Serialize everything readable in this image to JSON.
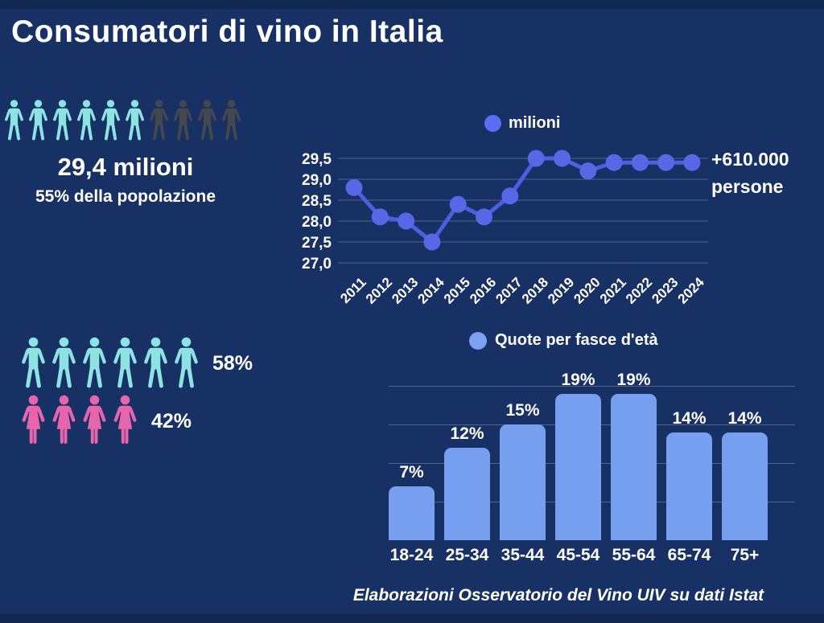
{
  "title": "Consumatori di vino in Italia",
  "colors": {
    "background": "#183165",
    "edge_strip": "#12284f",
    "text": "#ffffff",
    "teal": "#8de2e2",
    "inactive_gray": "#43474e",
    "pink": "#e765ad",
    "line": "#4c5fe0",
    "line_point": "#5767e6",
    "line_legend_dot": "#5b6df2",
    "bar": "#76a0ef",
    "bar_legend_dot": "#7aa2ee",
    "grid": "rgba(255,255,255,0.25)"
  },
  "population": {
    "value_label": "29,4 milioni",
    "share_label": "55% della popolazione",
    "icons_total": 10,
    "icons_highlighted": 6
  },
  "gender": [
    {
      "type": "male",
      "count": 6,
      "label": "58%"
    },
    {
      "type": "female",
      "count": 4,
      "label": "42%"
    }
  ],
  "chart_data": [
    {
      "type": "line",
      "legend": "milioni",
      "x": [
        "2011",
        "2012",
        "2013",
        "2014",
        "2015",
        "2016",
        "2017",
        "2018",
        "2019",
        "2020",
        "2021",
        "2022",
        "2023",
        "2024"
      ],
      "values": [
        28.8,
        28.1,
        28.0,
        27.5,
        28.4,
        28.1,
        28.6,
        29.5,
        29.5,
        29.2,
        29.4,
        29.4,
        29.4,
        29.4
      ],
      "ylim": [
        27.0,
        29.5
      ],
      "yticks": [
        {
          "value": 27.0,
          "label": "27,0"
        },
        {
          "value": 27.5,
          "label": "27,5"
        },
        {
          "value": 28.0,
          "label": "28,0"
        },
        {
          "value": 28.5,
          "label": "28,5"
        },
        {
          "value": 29.0,
          "label": "29,0"
        },
        {
          "value": 29.5,
          "label": "29,5"
        }
      ],
      "grid": true,
      "legend_position": "top",
      "annotation": {
        "line1": "+610.000",
        "line2": "persone"
      }
    },
    {
      "type": "bar",
      "legend": "Quote per fasce d'età",
      "categories": [
        "18-24",
        "25-34",
        "35-44",
        "45-54",
        "55-64",
        "65-74",
        "75+"
      ],
      "values": [
        7,
        12,
        15,
        19,
        19,
        14,
        14
      ],
      "labels": [
        "7%",
        "12%",
        "15%",
        "19%",
        "19%",
        "14%",
        "14%"
      ],
      "ylim": [
        0,
        20
      ],
      "gridlines_at": [
        5,
        10,
        15,
        20
      ],
      "grid": true,
      "legend_position": "top"
    }
  ],
  "source_note": "Elaborazioni Osservatorio del Vino UIV su dati Istat"
}
